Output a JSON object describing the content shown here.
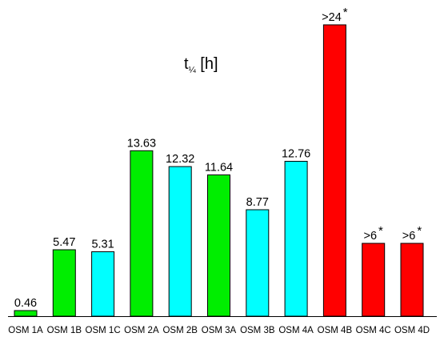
{
  "chart_data": {
    "type": "bar",
    "title_base": "t",
    "title_sub": "¼",
    "title_unit": " [h]",
    "categories": [
      "OSM 1A",
      "OSM 1B",
      "OSM 1C",
      "OSM 2A",
      "OSM 2B",
      "OSM 3A",
      "OSM 3B",
      "OSM 4A",
      "OSM 4B",
      "OSM 4C",
      "OSM 4D"
    ],
    "values": [
      0.46,
      5.47,
      5.31,
      13.63,
      12.32,
      11.64,
      8.77,
      12.76,
      24,
      6,
      6
    ],
    "labels": [
      "0.46",
      "5.47",
      "5.31",
      "13.63",
      "12.32",
      "11.64",
      "8.77",
      "12.76",
      ">24",
      ">6",
      ">6"
    ],
    "label_marks": [
      "",
      "",
      "",
      "",
      "",
      "",
      "",
      "",
      "*",
      "*",
      "*"
    ],
    "colors": [
      "#00ee00",
      "#00ee00",
      "#00ffff",
      "#00ee00",
      "#00ffff",
      "#00ee00",
      "#00ffff",
      "#00ffff",
      "#ff0000",
      "#ff0000",
      "#ff0000"
    ],
    "ylim": [
      0,
      24
    ],
    "grid": false,
    "xlabel": "",
    "ylabel": ""
  }
}
